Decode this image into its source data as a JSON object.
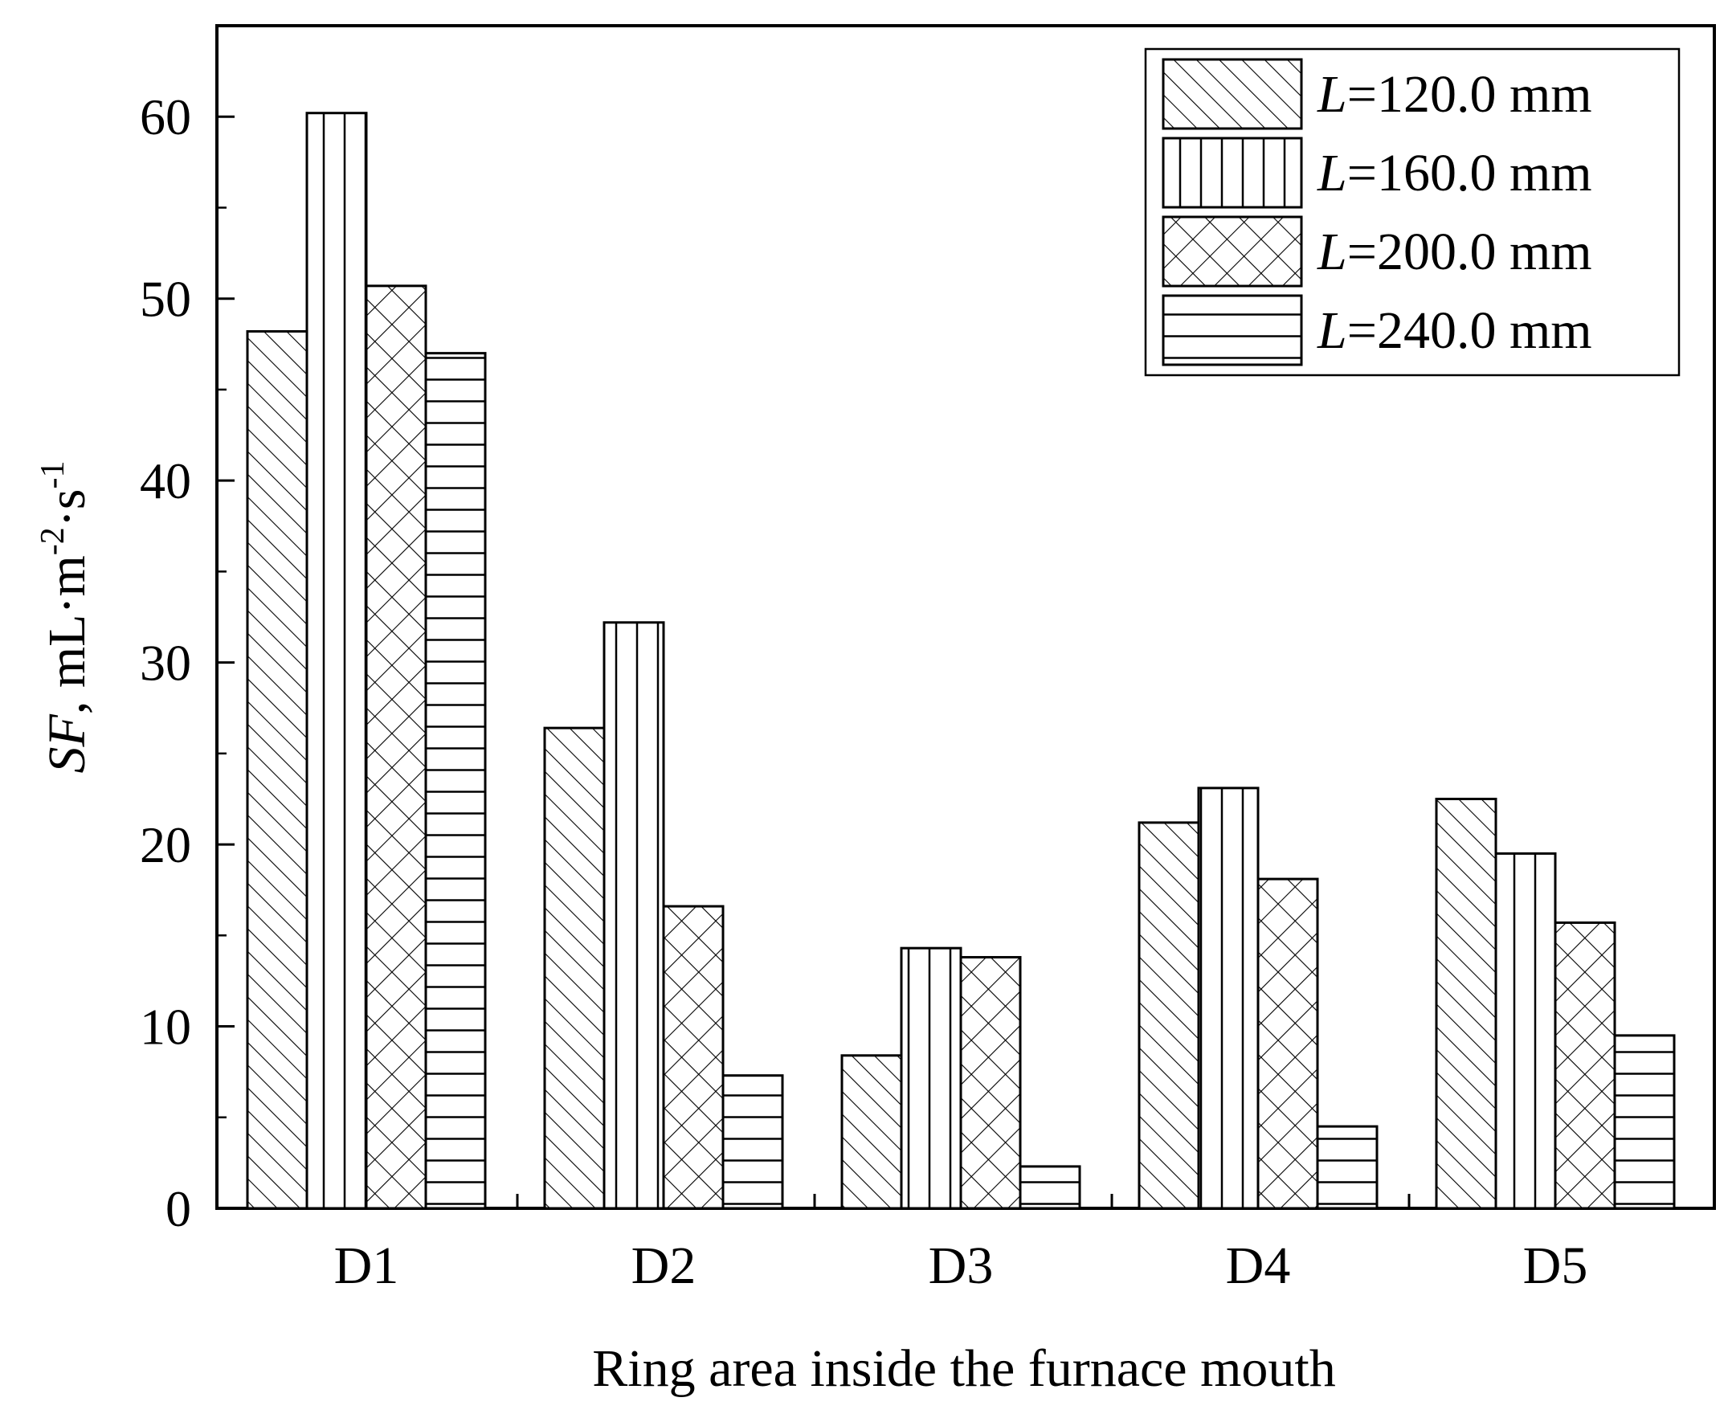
{
  "chart_data": {
    "type": "bar",
    "xlabel": "Ring area inside the furnace mouth",
    "ylabel": {
      "var": "SF",
      "sep": ", ",
      "unit_a": "mL·m",
      "exp_a": "-2",
      "unit_b": "·s",
      "exp_b": "-1"
    },
    "categories": [
      "D1",
      "D2",
      "D3",
      "D4",
      "D5"
    ],
    "ylim": [
      0,
      65
    ],
    "yticks": [
      0,
      10,
      20,
      30,
      40,
      50,
      60
    ],
    "legend_position": "top-right",
    "grid": false,
    "series": [
      {
        "name": "L=120.0 mm",
        "legend_var": "L",
        "legend_rest": "=120.0 mm",
        "pattern": "diagonal-hatch",
        "values": [
          48.2,
          26.4,
          8.4,
          21.2,
          22.5
        ]
      },
      {
        "name": "L=160.0 mm",
        "legend_var": "L",
        "legend_rest": "=160.0 mm",
        "pattern": "vertical-lines",
        "values": [
          60.2,
          32.2,
          14.3,
          23.1,
          19.5
        ]
      },
      {
        "name": "L=200.0 mm",
        "legend_var": "L",
        "legend_rest": "=200.0 mm",
        "pattern": "cross-hatch",
        "values": [
          50.7,
          16.6,
          13.8,
          18.1,
          15.7
        ]
      },
      {
        "name": "L=240.0 mm",
        "legend_var": "L",
        "legend_rest": "=240.0 mm",
        "pattern": "horizontal-lines",
        "values": [
          47.0,
          7.3,
          2.3,
          4.5,
          9.5
        ]
      }
    ]
  }
}
